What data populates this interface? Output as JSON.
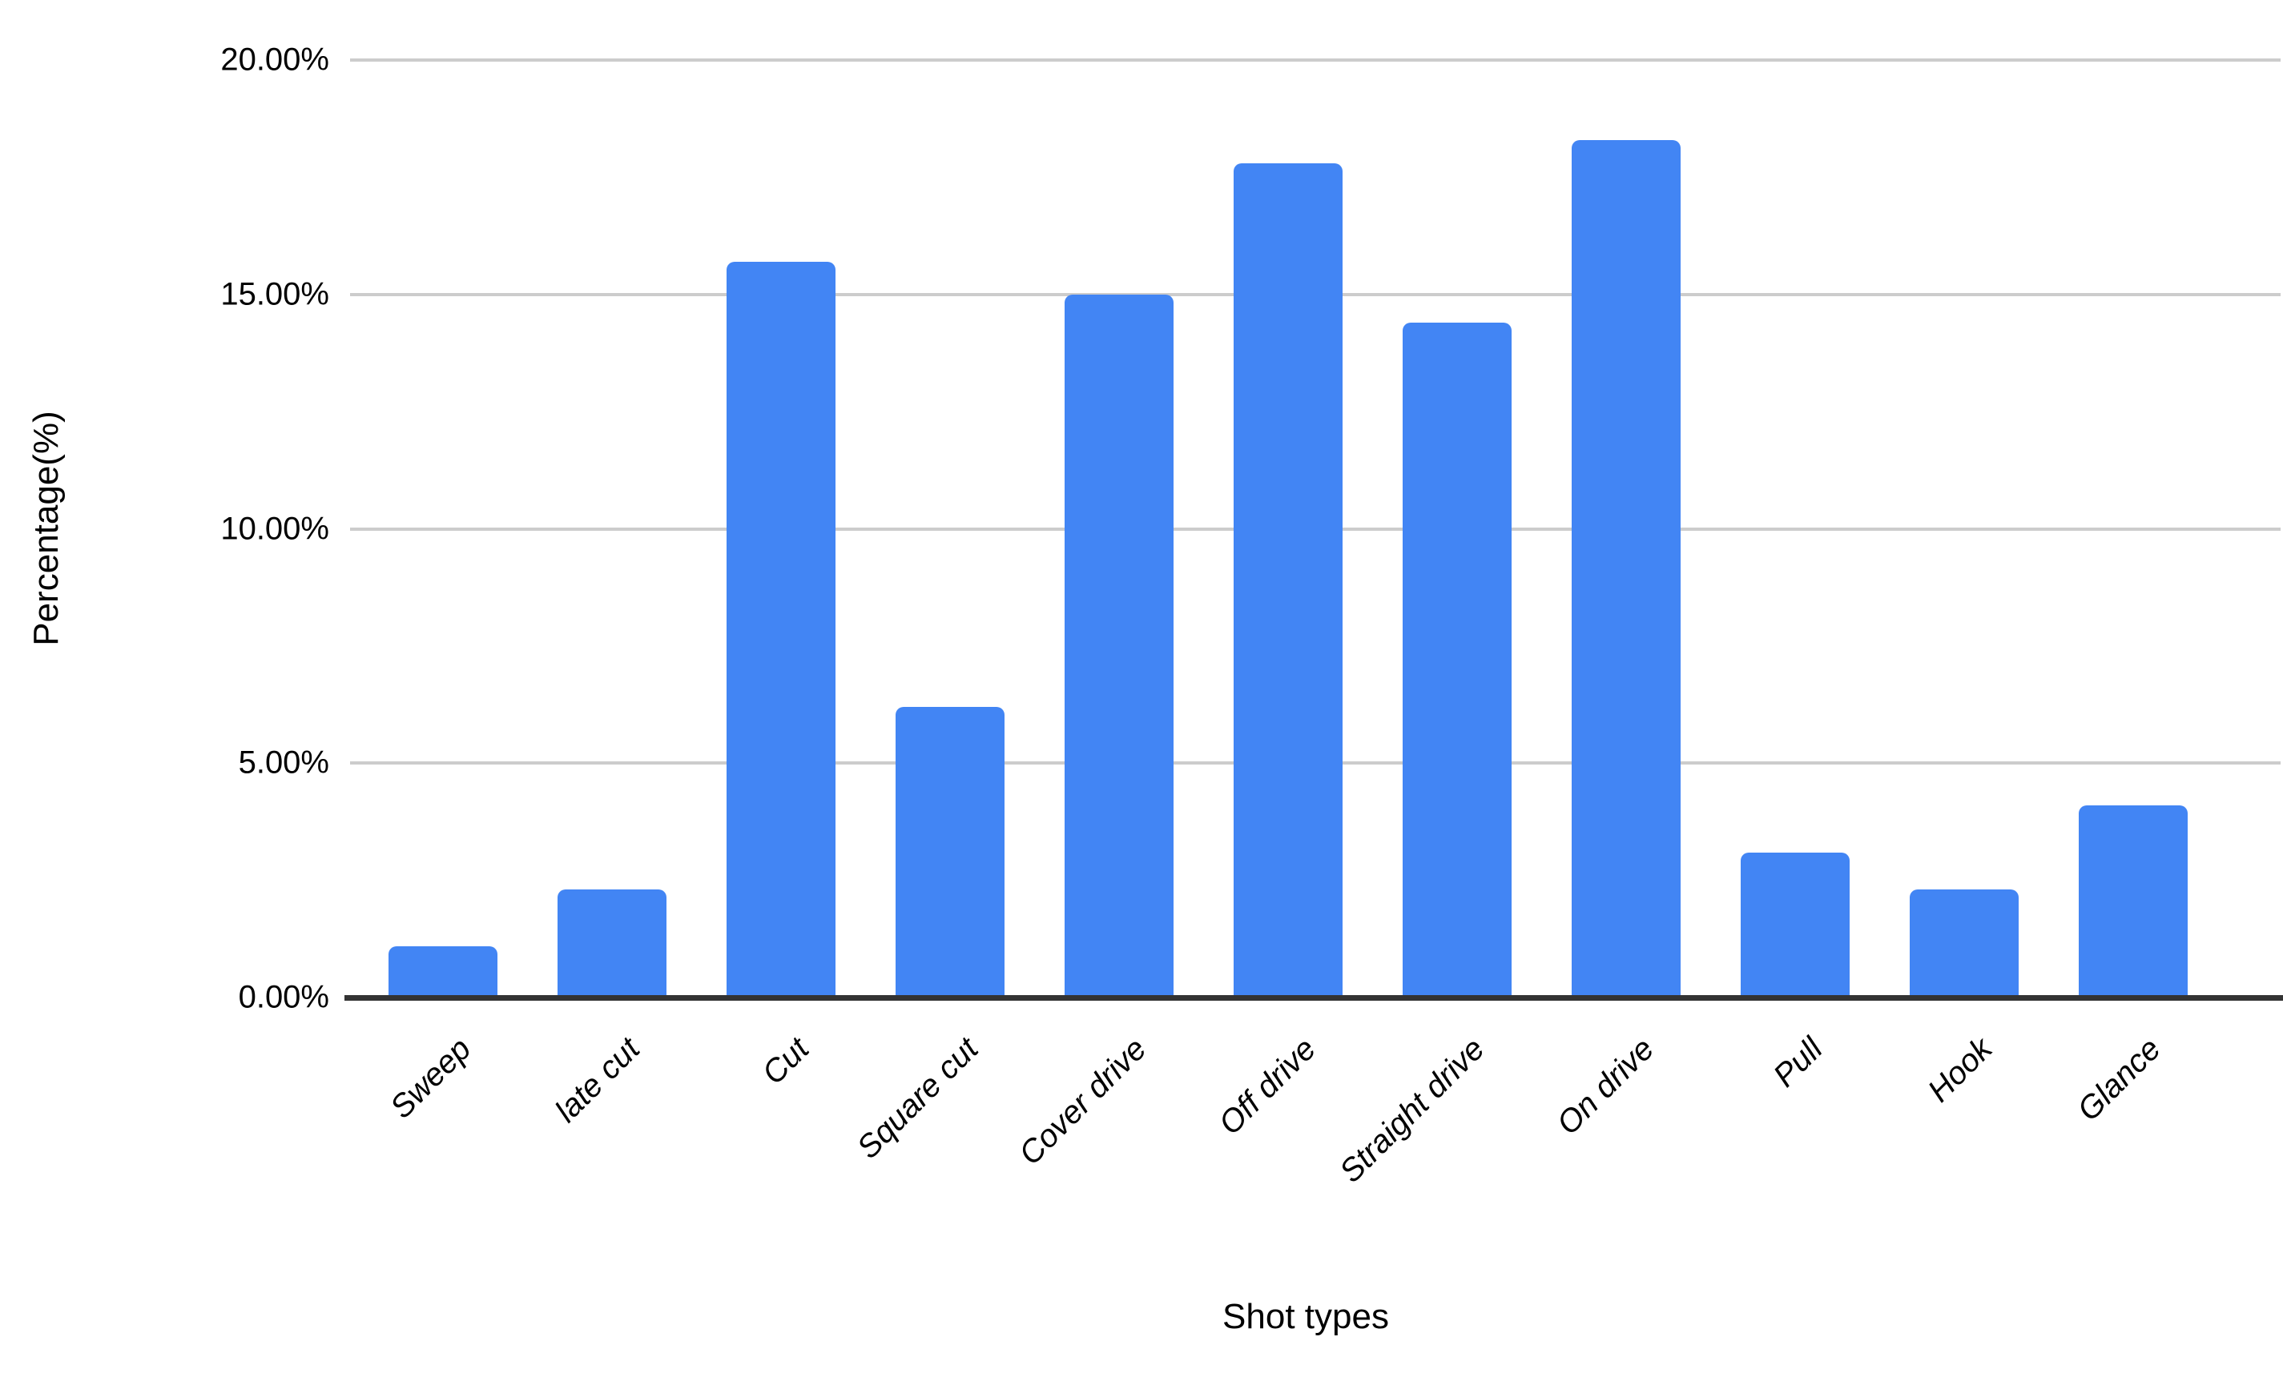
{
  "chart_data": {
    "type": "bar",
    "title": "",
    "xlabel": "Shot types",
    "ylabel": "Percentage(%)",
    "categories": [
      "Sweep",
      "late cut",
      "Cut",
      "Square cut",
      "Cover drive",
      "Off drive",
      "Straight drive",
      "On drive",
      "Pull",
      "Hook",
      "Glance"
    ],
    "values": [
      1.1,
      2.3,
      15.7,
      6.2,
      15.0,
      17.8,
      14.4,
      18.3,
      3.1,
      2.3,
      4.1
    ],
    "yticks": [
      "0.00%",
      "5.00%",
      "10.00%",
      "15.00%",
      "20.00%"
    ],
    "ylim": [
      0,
      20
    ],
    "grid": true,
    "legend": "none",
    "bar_color": "#4285f4",
    "gridline_color": "#cccccc",
    "axis_line_color": "#333333",
    "text_color": "#000000",
    "background_color": "#ffffff"
  }
}
